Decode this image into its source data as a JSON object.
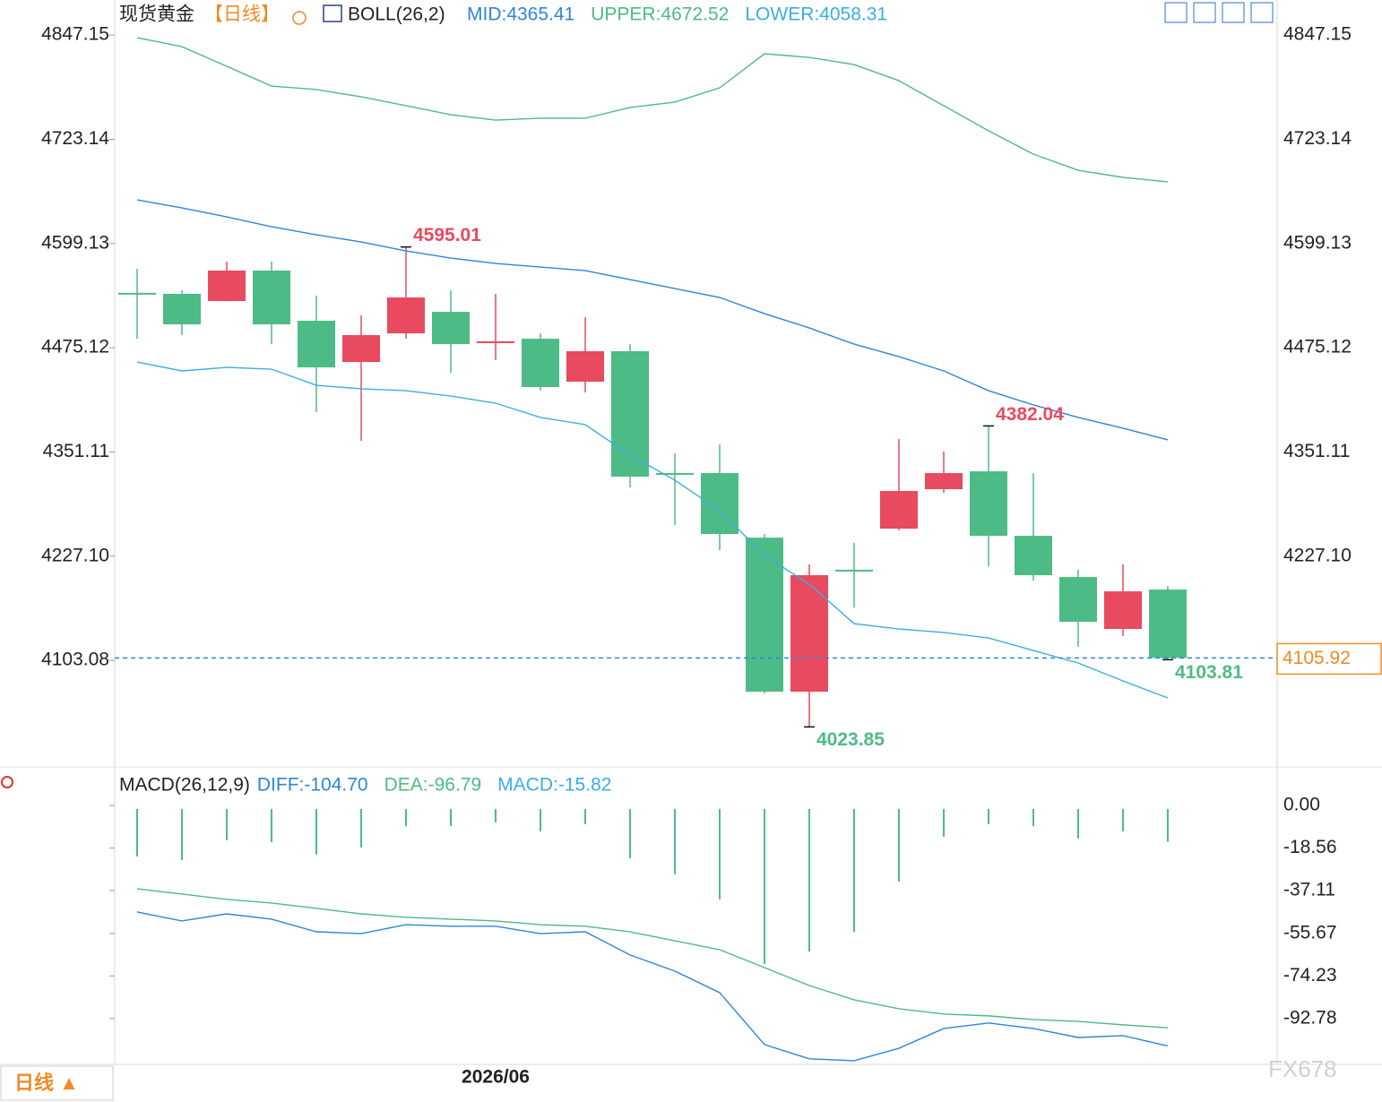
{
  "chart_data": [
    {
      "type": "candlestick",
      "title": "现货黄金",
      "subtitle": "【日线】",
      "indicator": "BOLL(26,2)",
      "categories": [
        null,
        null,
        null,
        null,
        null,
        null,
        null,
        null,
        "2026/06",
        null,
        null,
        null,
        null,
        null,
        null,
        null,
        null,
        null,
        null,
        null,
        null,
        null,
        null,
        null
      ],
      "open": [
        4540.4,
        4539.2,
        4530.6,
        4566.9,
        4507.2,
        4458.1,
        4492.2,
        4517.8,
        4482.5,
        4485.8,
        4434.7,
        4470.9,
        4326.0,
        4325.9,
        4249.1,
        4065.8,
        4210.9,
        4259.8,
        4306.7,
        4328.0,
        4251.3,
        4202.2,
        4140.4,
        4187.3
      ],
      "high": [
        4569.0,
        4543.4,
        4577.5,
        4577.5,
        4537.0,
        4513.6,
        4595.01,
        4543.4,
        4539.2,
        4492.2,
        4511.4,
        4479.4,
        4349.4,
        4360.0,
        4253.4,
        4217.2,
        4242.8,
        4366.4,
        4351.5,
        4382.04,
        4325.9,
        4210.8,
        4217.2,
        4191.6
      ],
      "low": [
        4485.8,
        4490.1,
        4530.6,
        4479.4,
        4398.4,
        4364.3,
        4485.8,
        4445.3,
        4460.3,
        4424.0,
        4421.9,
        4308.9,
        4264.1,
        4234.2,
        4063.6,
        4023.85,
        4166.0,
        4257.7,
        4302.5,
        4215.0,
        4198.0,
        4119.1,
        4131.9,
        4103.81
      ],
      "close": [
        4540.2,
        4502.9,
        4566.9,
        4502.9,
        4451.7,
        4490.1,
        4534.9,
        4479.4,
        4482.7,
        4428.3,
        4470.9,
        4321.7,
        4325.8,
        4253.4,
        4065.8,
        4204.4,
        4210.7,
        4304.6,
        4325.9,
        4251.3,
        4204.4,
        4148.9,
        4185.2,
        4105.92
      ],
      "up_color": "#e84a5f",
      "down_color": "#4dbb85",
      "series": [
        {
          "name": "MID:4365.41",
          "color": "#2d86d9",
          "values": [
            4651.1,
            4641.5,
            4630.8,
            4619.1,
            4609.5,
            4601.0,
            4590.3,
            4581.8,
            4575.4,
            4571.1,
            4566.9,
            4556.2,
            4545.5,
            4534.9,
            4515.7,
            4498.6,
            4479.4,
            4464.5,
            4447.5,
            4424.0,
            4407.0,
            4392.1,
            4379.3,
            4365.41
          ]
        },
        {
          "name": "UPPER:4672.52",
          "color": "#4dbb85",
          "values": [
            4844.1,
            4833.4,
            4810.0,
            4786.5,
            4782.3,
            4773.7,
            4763.1,
            4752.4,
            4746.0,
            4748.2,
            4748.2,
            4761.0,
            4767.4,
            4784.4,
            4824.9,
            4820.6,
            4812.1,
            4792.9,
            4763.1,
            4733.2,
            4705.5,
            4686.3,
            4677.8,
            4672.52
          ]
        },
        {
          "name": "LOWER:4058.31",
          "color": "#3aaee0",
          "values": [
            4458.1,
            4447.5,
            4451.7,
            4449.6,
            4430.4,
            4426.2,
            4424.0,
            4417.6,
            4409.1,
            4392.1,
            4383.6,
            4347.3,
            4317.5,
            4281.2,
            4227.9,
            4193.7,
            4146.8,
            4140.4,
            4136.2,
            4129.7,
            4114.8,
            4099.9,
            4078.6,
            4058.31
          ]
        }
      ],
      "ylim": [
        3977.3,
        4888.9
      ],
      "yticks": [
        4847.15,
        4723.14,
        4599.13,
        4475.12,
        4351.11,
        {
          "value": 4227.1,
          "label": "4227.10"
        },
        4103.08
      ],
      "annotations": [
        4595.01,
        4382.04,
        4023.85,
        4103.81
      ],
      "last_price": 4105.92,
      "last_price_color": "#f08a24"
    },
    {
      "type": "macd",
      "title": "MACD(26,12,9)",
      "series": [
        {
          "name": "DIFF:-104.70",
          "color": "#2d86d9",
          "values": [
            -46.4,
            -50.3,
            -47.2,
            -49.5,
            -55.0,
            -55.8,
            -51.9,
            -52.6,
            -52.6,
            -55.8,
            -55.0,
            -65.1,
            -72.1,
            -81.5,
            -104.1,
            -110.3,
            -111.1,
            -105.7,
            -97.1,
            -94.7,
            -97.1,
            -101.0,
            -100.2,
            -104.7
          ]
        },
        {
          "name": "DEA:-96.79",
          "color": "#4dbb85",
          "values": [
            -36.3,
            -38.6,
            -40.9,
            -42.5,
            -44.8,
            -47.2,
            -48.7,
            -49.5,
            -50.3,
            -51.9,
            -52.6,
            -55.0,
            -58.9,
            -62.8,
            -70.6,
            -78.4,
            -84.6,
            -88.5,
            -90.8,
            -91.6,
            -93.2,
            -94.0,
            -95.5,
            -96.79
          ]
        }
      ],
      "histogram": {
        "name": "MACD:-15.82",
        "label_color": "#3aaee0",
        "color": "#4dbb85",
        "values": [
          -22.2,
          -23.8,
          -15.2,
          -16.0,
          -21.4,
          -18.3,
          -9.0,
          -9.0,
          -7.4,
          -11.3,
          -8.2,
          -23.0,
          -30.0,
          -40.9,
          -69.0,
          -63.6,
          -55.0,
          -33.1,
          -13.6,
          -8.2,
          -9.0,
          -14.4,
          -11.3,
          -15.82
        ]
      },
      "ylim": [
        -112.7,
        14.4
      ],
      "yticks": [
        {
          "value": 0,
          "label": "0.00"
        },
        -18.56,
        -37.11,
        -55.67,
        -74.23,
        -92.78
      ]
    }
  ],
  "controls": {
    "period": "日线 ▲",
    "watermark": "FX678"
  }
}
